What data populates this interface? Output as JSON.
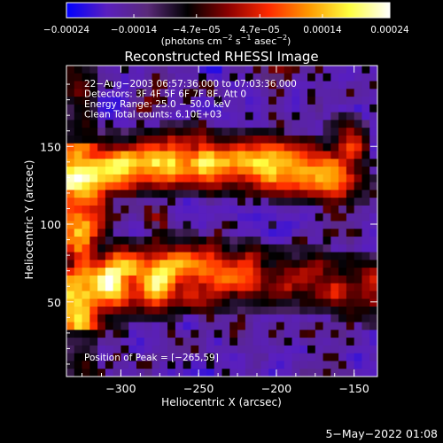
{
  "chart_data": {
    "type": "heatmap",
    "title": "Reconstructed RHESSI Image",
    "xlabel": "Heliocentric X (arcsec)",
    "ylabel": "Heliocentric Y (arcsec)",
    "xlim": [
      -335,
      -135
    ],
    "ylim": [
      2,
      202
    ],
    "x_ticks": [
      -300,
      -250,
      -200,
      -150
    ],
    "x_tick_labels": [
      "−300",
      "−250",
      "−200",
      "−150"
    ],
    "y_ticks": [
      50,
      100,
      150
    ],
    "y_tick_labels": [
      "50",
      "100",
      "150"
    ],
    "colorbar": {
      "range": [
        -0.00024,
        0.00024
      ],
      "ticks": [
        -0.00024,
        -0.00014,
        -4.7e-05,
        4.7e-05,
        0.00014,
        0.00024
      ],
      "tick_labels": [
        "−0.00024",
        "−0.00014",
        "−4.7e−05",
        "4.7e−05",
        "0.00014",
        "0.00024"
      ],
      "units_text": "(photons cm",
      "units_exp1": "−2",
      "units_mid": " s",
      "units_exp2": "−1",
      "units_mid2": " asec",
      "units_exp3": "−2",
      "units_end": ")",
      "colors": [
        "#0000ff",
        "#5a1fbe",
        "#5a2a7a",
        "#000000",
        "#8b0000",
        "#ff2a00",
        "#ff9900",
        "#ffff40",
        "#ffffff"
      ]
    },
    "info_lines": [
      "22−Aug−2003 06:57:36.000 to 07:03:36.000",
      "Detectors: 3F 4F 5F 6F 7F 8F, Att 0",
      "Energy Range: 25.0 − 50.0 keV",
      "Clean     Total counts: 6.10E+03"
    ],
    "peak_text": "Position of Peak = [−265,59]",
    "peak": [
      -265,
      59
    ],
    "grid_shape": [
      40,
      40
    ],
    "features": [
      {
        "name": "upper arc",
        "x": [
          -320,
          -165
        ],
        "y": [
          128,
          178
        ],
        "level": 0.00018
      },
      {
        "name": "lower arc",
        "x": [
          -330,
          -145
        ],
        "y": [
          28,
          80
        ],
        "level": 0.00024
      },
      {
        "name": "left column",
        "x": [
          -332,
          -300
        ],
        "y": [
          30,
          180
        ],
        "level": 0.00012
      }
    ]
  },
  "footer": {
    "date": "5−May−2022 01:08"
  }
}
